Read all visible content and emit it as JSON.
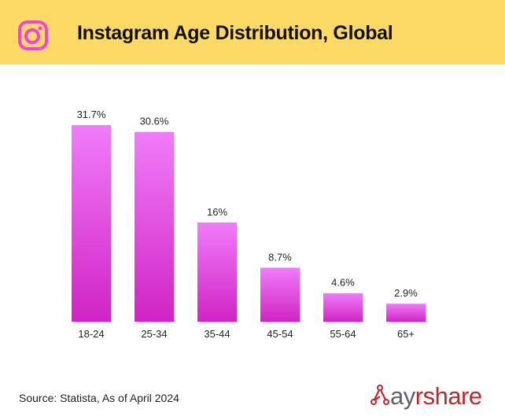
{
  "header": {
    "title": "Instagram Age Distribution, Global",
    "icon": "instagram-icon",
    "background_color": "#fdd965",
    "icon_color": "#f244dc"
  },
  "chart_data": {
    "type": "bar",
    "title": "Instagram Age Distribution, Global",
    "xlabel": "",
    "ylabel": "",
    "categories": [
      "18-24",
      "25-34",
      "35-44",
      "45-54",
      "55-64",
      "65+"
    ],
    "values": [
      31.7,
      30.6,
      16,
      8.7,
      4.6,
      2.9
    ],
    "data_labels": [
      "31.7%",
      "30.6%",
      "16%",
      "8.7%",
      "4.6%",
      "2.9%"
    ],
    "unit": "%",
    "ylim": [
      0,
      31.7
    ],
    "grid": false,
    "legend": "none",
    "bar_gradient": [
      "#f07cfa",
      "#d024c4"
    ]
  },
  "footer": {
    "source": "Source: Statista, As of April 2024",
    "logo": {
      "icon": "ayrshare-network-icon",
      "part1": "ay",
      "part2": "rshare",
      "color1": "#5f6368",
      "color2": "#c0272d"
    }
  }
}
